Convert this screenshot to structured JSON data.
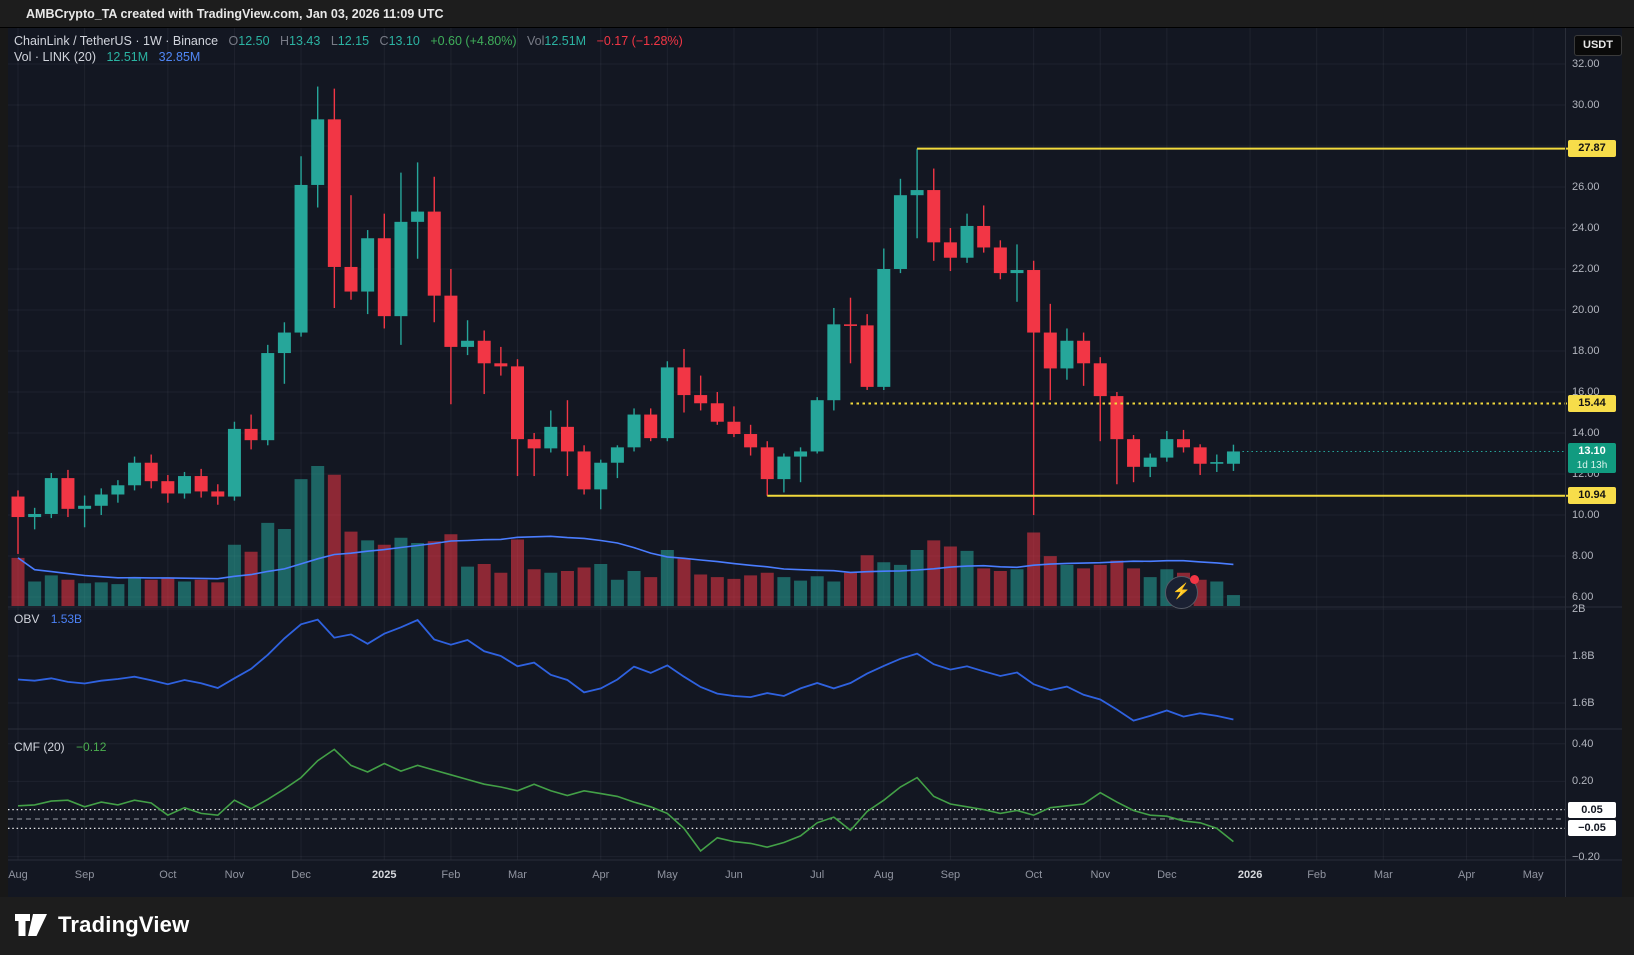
{
  "top_bar": {
    "attribution": "AMBCrypto_TA created with TradingView.com, Jan 03, 2026 11:09 UTC"
  },
  "header": {
    "symbol": "ChainLink / TetherUS · 1W · Binance",
    "o_label": "O",
    "o": "12.50",
    "h_label": "H",
    "h": "13.43",
    "l_label": "L",
    "l": "12.15",
    "c_label": "C",
    "c": "13.10",
    "change": "+0.60 (+4.80%)",
    "vol_label": "Vol",
    "vol": "12.51M",
    "vol_change": "−0.17 (−1.28%)",
    "indicator_row": {
      "name": "Vol · LINK (20)",
      "value1": "12.51M",
      "value2": "32.85M"
    }
  },
  "axis": {
    "currency_badge": "USDT",
    "last_price": "13.10",
    "countdown": "1d 13h"
  },
  "panes": {
    "obv": {
      "name": "OBV",
      "value": "1.53B"
    },
    "cmf": {
      "name": "CMF (20)",
      "value": "−0.12"
    }
  },
  "time_axis": {
    "labels": [
      {
        "text": "Aug",
        "week": 0,
        "strong": false
      },
      {
        "text": "Sep",
        "week": 4,
        "strong": false
      },
      {
        "text": "Oct",
        "week": 9,
        "strong": false
      },
      {
        "text": "Nov",
        "week": 13,
        "strong": false
      },
      {
        "text": "Dec",
        "week": 17,
        "strong": false
      },
      {
        "text": "2025",
        "week": 22,
        "strong": true
      },
      {
        "text": "Feb",
        "week": 26,
        "strong": false
      },
      {
        "text": "Mar",
        "week": 30,
        "strong": false
      },
      {
        "text": "Apr",
        "week": 35,
        "strong": false
      },
      {
        "text": "May",
        "week": 39,
        "strong": false
      },
      {
        "text": "Jun",
        "week": 43,
        "strong": false
      },
      {
        "text": "Jul",
        "week": 48,
        "strong": false
      },
      {
        "text": "Aug",
        "week": 52,
        "strong": false
      },
      {
        "text": "Sep",
        "week": 56,
        "strong": false
      },
      {
        "text": "Oct",
        "week": 61,
        "strong": false
      },
      {
        "text": "Nov",
        "week": 65,
        "strong": false
      },
      {
        "text": "Dec",
        "week": 69,
        "strong": false
      },
      {
        "text": "2026",
        "week": 74,
        "strong": true
      },
      {
        "text": "Feb",
        "week": 78,
        "strong": false
      },
      {
        "text": "Mar",
        "week": 82,
        "strong": false
      },
      {
        "text": "Apr",
        "week": 87,
        "strong": false
      },
      {
        "text": "May",
        "week": 91,
        "strong": false
      }
    ]
  },
  "footer": {
    "brand": "TradingView"
  },
  "chart_data": {
    "type": "candlestick",
    "title": "ChainLink / TetherUS 1W Binance",
    "interval": "1W",
    "price_axis": {
      "min": 6,
      "max": 32,
      "tick_step": 2,
      "unit": "USDT"
    },
    "grid": true,
    "candles_ohlcv": [
      [
        10.9,
        11.2,
        8.1,
        9.9,
        55
      ],
      [
        9.9,
        10.35,
        9.3,
        10.05,
        28
      ],
      [
        10.05,
        12.05,
        9.85,
        11.8,
        35
      ],
      [
        11.8,
        12.2,
        9.9,
        10.3,
        30
      ],
      [
        10.3,
        10.95,
        9.4,
        10.45,
        26
      ],
      [
        10.45,
        11.3,
        10.0,
        11.0,
        27
      ],
      [
        11.0,
        11.7,
        10.6,
        11.45,
        25
      ],
      [
        11.45,
        12.85,
        11.2,
        12.55,
        33
      ],
      [
        12.55,
        12.95,
        11.3,
        11.65,
        30
      ],
      [
        11.65,
        11.95,
        10.6,
        11.05,
        32
      ],
      [
        11.05,
        12.1,
        10.8,
        11.9,
        28
      ],
      [
        11.9,
        12.25,
        10.85,
        11.15,
        30
      ],
      [
        11.15,
        11.5,
        10.5,
        10.9,
        27
      ],
      [
        10.9,
        14.55,
        10.7,
        14.2,
        70
      ],
      [
        14.2,
        14.9,
        13.2,
        13.65,
        62
      ],
      [
        13.65,
        18.3,
        13.4,
        17.9,
        95
      ],
      [
        17.9,
        19.4,
        16.4,
        18.9,
        88
      ],
      [
        18.9,
        27.5,
        18.7,
        26.1,
        145
      ],
      [
        26.1,
        30.9,
        25.0,
        29.3,
        160
      ],
      [
        29.3,
        30.8,
        20.1,
        22.1,
        150
      ],
      [
        22.1,
        25.6,
        20.5,
        20.9,
        85
      ],
      [
        20.9,
        23.9,
        19.8,
        23.5,
        75
      ],
      [
        23.5,
        24.7,
        19.1,
        19.7,
        70
      ],
      [
        19.7,
        26.7,
        18.3,
        24.3,
        78
      ],
      [
        24.3,
        27.2,
        22.5,
        24.8,
        72
      ],
      [
        24.8,
        26.5,
        19.4,
        20.7,
        74
      ],
      [
        20.7,
        22.0,
        15.4,
        18.2,
        82
      ],
      [
        18.2,
        19.5,
        17.8,
        18.5,
        45
      ],
      [
        18.5,
        19.0,
        15.9,
        17.4,
        48
      ],
      [
        17.4,
        18.2,
        16.8,
        17.25,
        38
      ],
      [
        17.25,
        17.6,
        11.9,
        13.7,
        76
      ],
      [
        13.7,
        14.0,
        11.9,
        13.25,
        42
      ],
      [
        13.25,
        15.1,
        13.05,
        14.3,
        38
      ],
      [
        14.3,
        15.6,
        11.9,
        13.1,
        40
      ],
      [
        13.1,
        13.4,
        11.0,
        11.25,
        44
      ],
      [
        11.25,
        12.7,
        10.28,
        12.55,
        48
      ],
      [
        12.55,
        13.4,
        11.8,
        13.3,
        30
      ],
      [
        13.3,
        15.2,
        13.1,
        14.9,
        40
      ],
      [
        14.9,
        15.2,
        13.6,
        13.75,
        33
      ],
      [
        13.75,
        17.5,
        13.6,
        17.2,
        64
      ],
      [
        17.2,
        18.1,
        15.0,
        15.85,
        54
      ],
      [
        15.85,
        16.8,
        15.1,
        15.45,
        36
      ],
      [
        15.45,
        16.0,
        14.4,
        14.55,
        33
      ],
      [
        14.55,
        15.3,
        13.8,
        13.95,
        31
      ],
      [
        13.95,
        14.4,
        12.9,
        13.3,
        35
      ],
      [
        13.3,
        13.6,
        10.94,
        11.75,
        38
      ],
      [
        11.75,
        13.0,
        11.1,
        12.85,
        33
      ],
      [
        12.85,
        13.3,
        11.6,
        13.1,
        29
      ],
      [
        13.1,
        15.75,
        13.0,
        15.6,
        34
      ],
      [
        15.6,
        20.1,
        15.1,
        19.3,
        28
      ],
      [
        19.3,
        20.6,
        17.4,
        19.25,
        38
      ],
      [
        19.25,
        19.8,
        16.1,
        16.25,
        58
      ],
      [
        16.25,
        23.0,
        16.1,
        22.0,
        50
      ],
      [
        22.0,
        26.4,
        21.8,
        25.6,
        47
      ],
      [
        25.6,
        27.87,
        23.5,
        25.85,
        64
      ],
      [
        25.85,
        26.9,
        22.4,
        23.3,
        75
      ],
      [
        23.3,
        24.0,
        21.9,
        22.55,
        68
      ],
      [
        22.55,
        24.7,
        22.3,
        24.1,
        63
      ],
      [
        24.1,
        25.1,
        22.8,
        23.05,
        43
      ],
      [
        23.05,
        23.4,
        21.5,
        21.8,
        40
      ],
      [
        21.8,
        23.2,
        20.4,
        21.95,
        42
      ],
      [
        21.95,
        22.4,
        10.0,
        18.9,
        84
      ],
      [
        18.9,
        20.3,
        15.6,
        17.15,
        57
      ],
      [
        17.15,
        19.1,
        16.6,
        18.5,
        47
      ],
      [
        18.5,
        18.9,
        16.3,
        17.4,
        43
      ],
      [
        17.4,
        17.7,
        13.6,
        15.8,
        47
      ],
      [
        15.8,
        16.0,
        11.5,
        13.7,
        52
      ],
      [
        13.7,
        13.9,
        11.6,
        12.35,
        43
      ],
      [
        12.35,
        13.0,
        11.85,
        12.8,
        33
      ],
      [
        12.8,
        14.1,
        12.6,
        13.7,
        42
      ],
      [
        13.7,
        14.15,
        13.05,
        13.3,
        38
      ],
      [
        13.3,
        13.45,
        11.95,
        12.5,
        30
      ],
      [
        12.5,
        12.95,
        12.1,
        12.58,
        28
      ],
      [
        12.5,
        13.43,
        12.15,
        13.1,
        12.51
      ]
    ],
    "volume_ma_period": 20,
    "levels": [
      {
        "value": 27.87,
        "style": "solid",
        "from_week": 54
      },
      {
        "value": 15.44,
        "style": "dotted",
        "from_week": 50
      },
      {
        "value": 10.94,
        "style": "solid",
        "from_week": 45
      }
    ],
    "last_price": 13.1,
    "studies": [
      {
        "name": "OBV",
        "current": "1.53B",
        "ticks": [
          2.0,
          1.8,
          1.6
        ],
        "series": [
          1.7,
          1.695,
          1.705,
          1.69,
          1.683,
          1.695,
          1.702,
          1.712,
          1.697,
          1.68,
          1.698,
          1.684,
          1.664,
          1.705,
          1.745,
          1.805,
          1.875,
          1.935,
          1.955,
          1.878,
          1.892,
          1.852,
          1.895,
          1.922,
          1.953,
          1.87,
          1.848,
          1.868,
          1.82,
          1.8,
          1.756,
          1.772,
          1.72,
          1.698,
          1.645,
          1.662,
          1.7,
          1.755,
          1.728,
          1.76,
          1.712,
          1.668,
          1.64,
          1.63,
          1.625,
          1.642,
          1.63,
          1.662,
          1.685,
          1.662,
          1.685,
          1.725,
          1.758,
          1.788,
          1.81,
          1.765,
          1.742,
          1.756,
          1.735,
          1.715,
          1.73,
          1.68,
          1.655,
          1.67,
          1.635,
          1.615,
          1.572,
          1.525,
          1.545,
          1.568,
          1.542,
          1.556,
          1.545,
          1.53
        ]
      },
      {
        "name": "CMF",
        "period": 20,
        "current": -0.12,
        "ticks": [
          0.4,
          0.2,
          -0.2
        ],
        "bands": [
          0.05,
          -0.05
        ],
        "series": [
          0.07,
          0.075,
          0.095,
          0.1,
          0.065,
          0.09,
          0.075,
          0.1,
          0.085,
          0.02,
          0.06,
          0.03,
          0.02,
          0.1,
          0.055,
          0.105,
          0.16,
          0.22,
          0.31,
          0.37,
          0.285,
          0.25,
          0.295,
          0.255,
          0.285,
          0.26,
          0.235,
          0.21,
          0.185,
          0.17,
          0.15,
          0.185,
          0.15,
          0.125,
          0.15,
          0.135,
          0.12,
          0.09,
          0.065,
          0.03,
          -0.05,
          -0.17,
          -0.1,
          -0.12,
          -0.13,
          -0.15,
          -0.125,
          -0.09,
          -0.02,
          0.01,
          -0.06,
          0.04,
          0.1,
          0.17,
          0.22,
          0.12,
          0.08,
          0.065,
          0.05,
          0.03,
          0.045,
          0.02,
          0.06,
          0.07,
          0.08,
          0.14,
          0.09,
          0.045,
          0.02,
          0.015,
          -0.01,
          -0.02,
          -0.05,
          -0.12
        ]
      }
    ],
    "colors": {
      "background": "#131722",
      "up": "#26a69a",
      "down": "#f23645",
      "volume_up": "rgba(38,166,154,0.55)",
      "volume_down": "rgba(242,54,69,0.55)",
      "volume_ma": "#4a7dff",
      "obv_line": "#2f62e0",
      "cmf_line": "#43a047",
      "level_line": "#f2da3c",
      "level_badge": "#f7dd4a",
      "last_price_badge": "#119b80",
      "grid": "rgba(240,243,250,0.055)",
      "divider": "#2a2e39"
    }
  }
}
